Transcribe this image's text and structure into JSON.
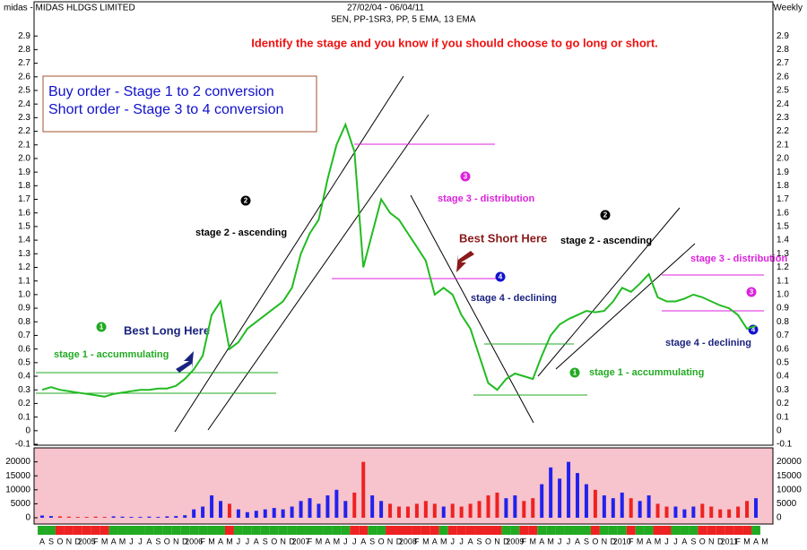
{
  "chart_data": [
    {
      "type": "line",
      "title": "midas - MIDAS HLDGS LIMITED",
      "subtitle": "27/02/04 - 06/04/11",
      "indicators": "5EN, PP-1SR3, PP, 5 EMA, 13 EMA",
      "period": "Weekly",
      "categories": [
        "A",
        "S",
        "O",
        "N",
        "D",
        "2005",
        "F",
        "M",
        "A",
        "M",
        "J",
        "J",
        "A",
        "S",
        "O",
        "N",
        "D",
        "2006",
        "F",
        "M",
        "A",
        "M",
        "J",
        "J",
        "A",
        "S",
        "O",
        "N",
        "D",
        "2007",
        "F",
        "M",
        "A",
        "M",
        "J",
        "J",
        "A",
        "S",
        "O",
        "N",
        "D",
        "2008",
        "F",
        "M",
        "A",
        "M",
        "J",
        "J",
        "A",
        "S",
        "O",
        "N",
        "D",
        "2009",
        "F",
        "M",
        "A",
        "M",
        "J",
        "J",
        "A",
        "S",
        "O",
        "N",
        "D",
        "2010",
        "F",
        "M",
        "A",
        "M",
        "J",
        "J",
        "A",
        "S",
        "O",
        "N",
        "D",
        "2011",
        "F",
        "M",
        "A",
        "M"
      ],
      "series": [
        {
          "name": "midas",
          "color": "#22bb22",
          "values": [
            0.3,
            0.32,
            0.3,
            0.29,
            0.28,
            0.27,
            0.26,
            0.25,
            0.27,
            0.28,
            0.29,
            0.3,
            0.3,
            0.31,
            0.31,
            0.33,
            0.38,
            0.45,
            0.55,
            0.85,
            0.95,
            0.6,
            0.65,
            0.75,
            0.8,
            0.85,
            0.9,
            0.95,
            1.05,
            1.3,
            1.45,
            1.55,
            1.85,
            2.1,
            2.25,
            2.05,
            1.2,
            1.45,
            1.7,
            1.6,
            1.55,
            1.45,
            1.35,
            1.25,
            1.0,
            1.05,
            1.0,
            0.85,
            0.75,
            0.55,
            0.35,
            0.3,
            0.38,
            0.42,
            0.4,
            0.38,
            0.55,
            0.7,
            0.78,
            0.82,
            0.85,
            0.88,
            0.87,
            0.88,
            0.95,
            1.05,
            1.02,
            1.08,
            1.15,
            0.98,
            0.95,
            0.95,
            0.97,
            1.0,
            0.98,
            0.95,
            0.92,
            0.9,
            0.85,
            0.75,
            0.77,
            null
          ]
        }
      ],
      "up_color": "#22aa22",
      "down_color": "#ee2222",
      "ylim": [
        -0.1,
        3.0
      ],
      "yticks": [
        -0.1,
        0,
        0.1,
        0.2,
        0.3,
        0.4,
        0.5,
        0.6,
        0.7,
        0.8,
        0.9,
        {
          "value": 1,
          "label": "1.0"
        },
        1.1,
        1.2,
        1.3,
        1.4,
        1.5,
        1.6,
        1.7,
        1.8,
        1.9,
        {
          "value": 2,
          "label": "2.0"
        },
        2.1,
        2.2,
        2.3,
        2.4,
        2.5,
        2.6,
        2.7,
        2.8,
        2.9
      ],
      "headline": "Identify the stage and you know if you should choose to go long or short.",
      "legend_box": [
        "Buy order - Stage 1 to 2 conversion",
        "Short order - Stage 3 to 4 conversion"
      ],
      "annotations": [
        "stage 1 - accummulating",
        "Best Long Here",
        "stage 2 - ascending",
        "stage 3 - distribution",
        "Best Short Here",
        "stage 2 - ascending",
        "stage 4 - declining",
        "stage 1 - accummulating",
        "stage 3 - distribution",
        "stage 4 - declining"
      ],
      "markers": [
        "1",
        "2",
        "3",
        "4",
        "2",
        "1",
        "3",
        "4"
      ]
    },
    {
      "type": "bar",
      "values": [
        800,
        600,
        500,
        400,
        300,
        300,
        400,
        300,
        500,
        400,
        300,
        300,
        400,
        300,
        500,
        600,
        900,
        3000,
        4000,
        8000,
        6000,
        5000,
        3000,
        2000,
        2500,
        3000,
        3500,
        3000,
        4000,
        6000,
        7000,
        5000,
        8000,
        10000,
        6000,
        9000,
        20000,
        8000,
        6000,
        5000,
        4000,
        4000,
        5000,
        6000,
        5000,
        4000,
        5000,
        4000,
        5000,
        6000,
        8000,
        9000,
        7000,
        8000,
        6000,
        7000,
        12000,
        18000,
        14000,
        20000,
        16000,
        12000,
        10000,
        8000,
        7000,
        9000,
        7000,
        6000,
        8000,
        5000,
        4000,
        4000,
        3000,
        4000,
        5000,
        4000,
        3000,
        3000,
        4000,
        6000,
        7000,
        null
      ],
      "up_color": "#2222ee",
      "down_color": "#ee2222",
      "ylim": [
        0,
        25000
      ],
      "yticks": [
        0,
        5000,
        10000,
        15000,
        20000
      ]
    }
  ]
}
